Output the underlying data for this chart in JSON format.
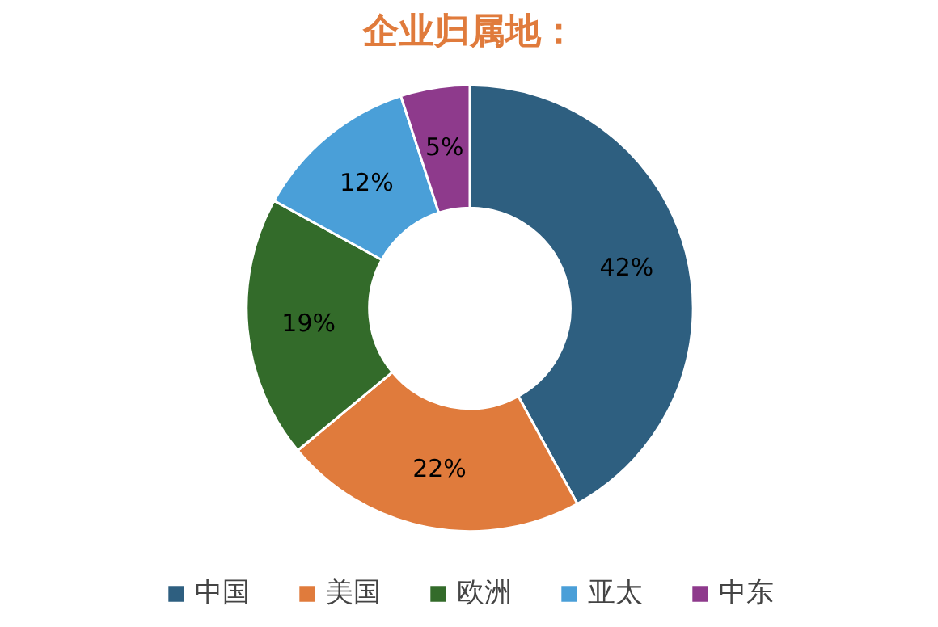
{
  "chart_data": {
    "type": "donut",
    "title": "企业归属地：",
    "categories": [
      "中国",
      "美国",
      "欧洲",
      "亚太",
      "中东"
    ],
    "values": [
      42,
      22,
      19,
      12,
      5
    ],
    "colors": [
      "#2e5f80",
      "#e07b3c",
      "#336b2a",
      "#4a9fd8",
      "#8e3a8c"
    ],
    "value_labels": [
      "42%",
      "22%",
      "19%",
      "12%",
      "5%"
    ],
    "legend": "bottom"
  }
}
